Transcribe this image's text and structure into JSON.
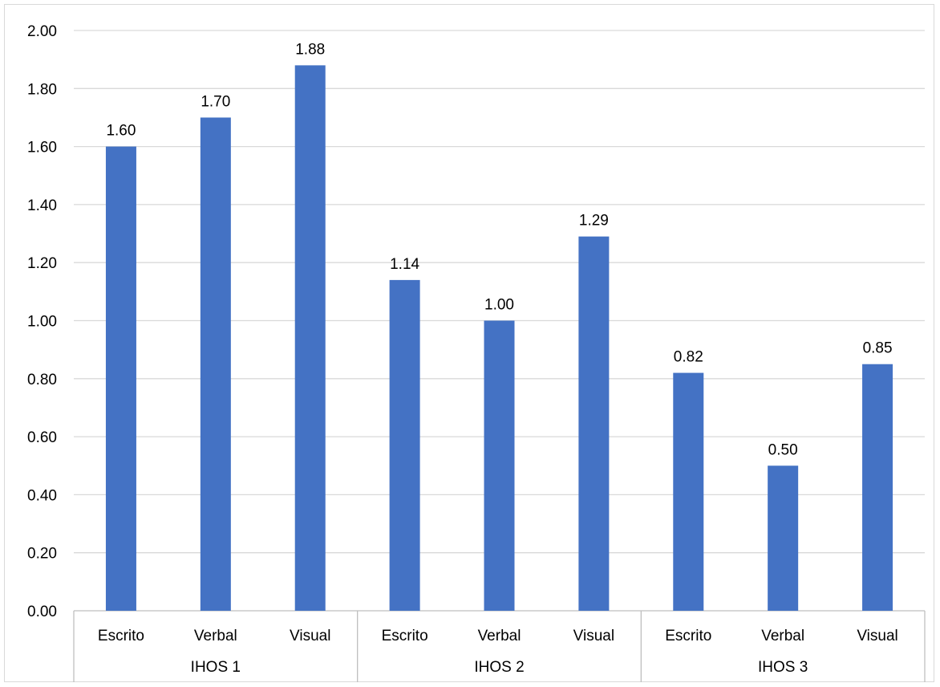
{
  "chart_data": {
    "type": "bar",
    "title": "",
    "xlabel": "",
    "ylabel": "",
    "groups": [
      {
        "label": "IHOS 1",
        "categories": [
          "Escrito",
          "Verbal",
          "Visual"
        ],
        "values": [
          1.6,
          1.7,
          1.88
        ]
      },
      {
        "label": "IHOS 2",
        "categories": [
          "Escrito",
          "Verbal",
          "Visual"
        ],
        "values": [
          1.14,
          1.0,
          1.29
        ]
      },
      {
        "label": "IHOS 3",
        "categories": [
          "Escrito",
          "Verbal",
          "Visual"
        ],
        "values": [
          0.82,
          0.5,
          0.85
        ]
      }
    ],
    "data_labels": [
      [
        "1.60",
        "1.70",
        "1.88"
      ],
      [
        "1.14",
        "1.00",
        "1.29"
      ],
      [
        "0.82",
        "0.50",
        "0.85"
      ]
    ],
    "ylim": [
      0,
      2.0
    ],
    "yticks": [
      "0.00",
      "0.20",
      "0.40",
      "0.60",
      "0.80",
      "1.00",
      "1.20",
      "1.40",
      "1.60",
      "1.80",
      "2.00"
    ],
    "grid": true,
    "legend": "none",
    "colors": {
      "bar": "#4472c4",
      "grid": "#d9d9d9",
      "axis": "#bfbfbf",
      "text": "#000000"
    }
  }
}
